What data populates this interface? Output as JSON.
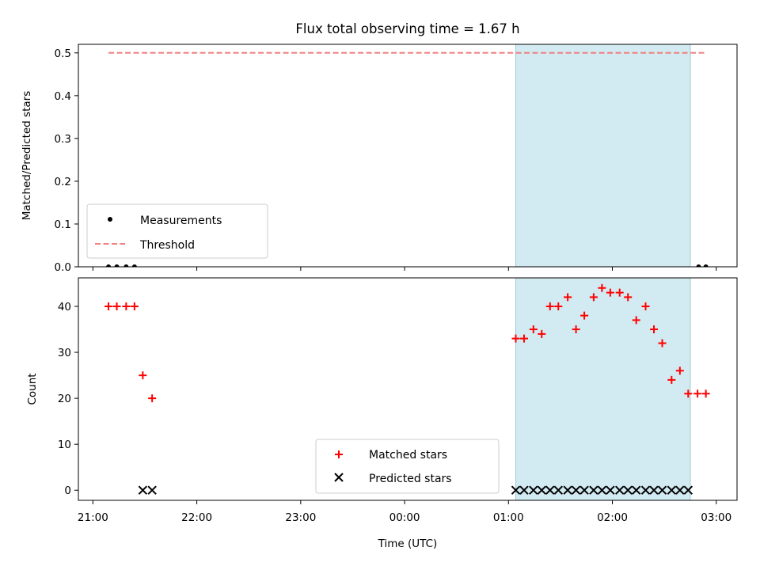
{
  "chart_data": {
    "title": "Flux total observing time = 1.67 h",
    "xlabel": "Time (UTC)",
    "x_ticks": [
      "21:00",
      "22:00",
      "23:00",
      "00:00",
      "01:00",
      "02:00",
      "03:00"
    ],
    "x_tick_hours": [
      0,
      1,
      2,
      3,
      4,
      5,
      6
    ],
    "x_range_hours": [
      -0.14,
      6.2
    ],
    "x_origin": "21:00",
    "shaded_span_hours": [
      4.07,
      5.75
    ],
    "shade_color": "#add8e6",
    "panels": [
      {
        "type": "scatter",
        "ylabel": "Matched/Predicted stars",
        "ylim": [
          0,
          0.52
        ],
        "y_ticks": [
          0.0,
          0.1,
          0.2,
          0.3,
          0.4,
          0.5
        ],
        "y_tick_labels": [
          "0.0",
          "0.1",
          "0.2",
          "0.3",
          "0.4",
          "0.5"
        ],
        "legend": {
          "placement": "lower-left",
          "entries": [
            "Measurements",
            "Threshold"
          ]
        },
        "series": [
          {
            "name": "Measurements",
            "marker": "dot",
            "color": "#000000",
            "x": [
              0.15,
              0.23,
              0.32,
              0.4,
              5.83,
              5.9
            ],
            "y": [
              0,
              0,
              0,
              0,
              0,
              0
            ]
          },
          {
            "name": "Threshold",
            "style": "dashed-line",
            "color": "#f08080",
            "x": [
              0.15,
              5.9
            ],
            "y": [
              0.5,
              0.5
            ]
          }
        ]
      },
      {
        "type": "scatter",
        "ylabel": "Count",
        "ylim": [
          -2.2,
          46.2
        ],
        "y_ticks": [
          0,
          10,
          20,
          30,
          40
        ],
        "y_tick_labels": [
          "0",
          "10",
          "20",
          "30",
          "40"
        ],
        "legend": {
          "placement": "lower-center",
          "entries": [
            "Matched stars",
            "Predicted stars"
          ]
        },
        "series": [
          {
            "name": "Matched stars",
            "marker": "plus",
            "color": "#ff0000",
            "x": [
              0.15,
              0.23,
              0.32,
              0.4,
              0.48,
              0.57,
              4.07,
              4.15,
              4.24,
              4.32,
              4.4,
              4.48,
              4.57,
              4.65,
              4.73,
              4.82,
              4.9,
              4.98,
              5.07,
              5.15,
              5.23,
              5.32,
              5.4,
              5.48,
              5.57,
              5.65,
              5.73,
              5.82,
              5.9
            ],
            "y": [
              40,
              40,
              40,
              40,
              25,
              20,
              33,
              33,
              35,
              34,
              40,
              40,
              42,
              35,
              38,
              42,
              44,
              43,
              43,
              42,
              37,
              40,
              35,
              32,
              24,
              26,
              21,
              21,
              21
            ]
          },
          {
            "name": "Predicted stars",
            "marker": "x",
            "color": "#000000",
            "x": [
              0.48,
              0.57,
              4.07,
              4.15,
              4.24,
              4.32,
              4.4,
              4.48,
              4.57,
              4.65,
              4.73,
              4.82,
              4.9,
              4.98,
              5.07,
              5.15,
              5.23,
              5.32,
              5.4,
              5.48,
              5.57,
              5.65,
              5.73
            ],
            "y": [
              0,
              0,
              0,
              0,
              0,
              0,
              0,
              0,
              0,
              0,
              0,
              0,
              0,
              0,
              0,
              0,
              0,
              0,
              0,
              0,
              0,
              0,
              0
            ]
          }
        ]
      }
    ]
  }
}
